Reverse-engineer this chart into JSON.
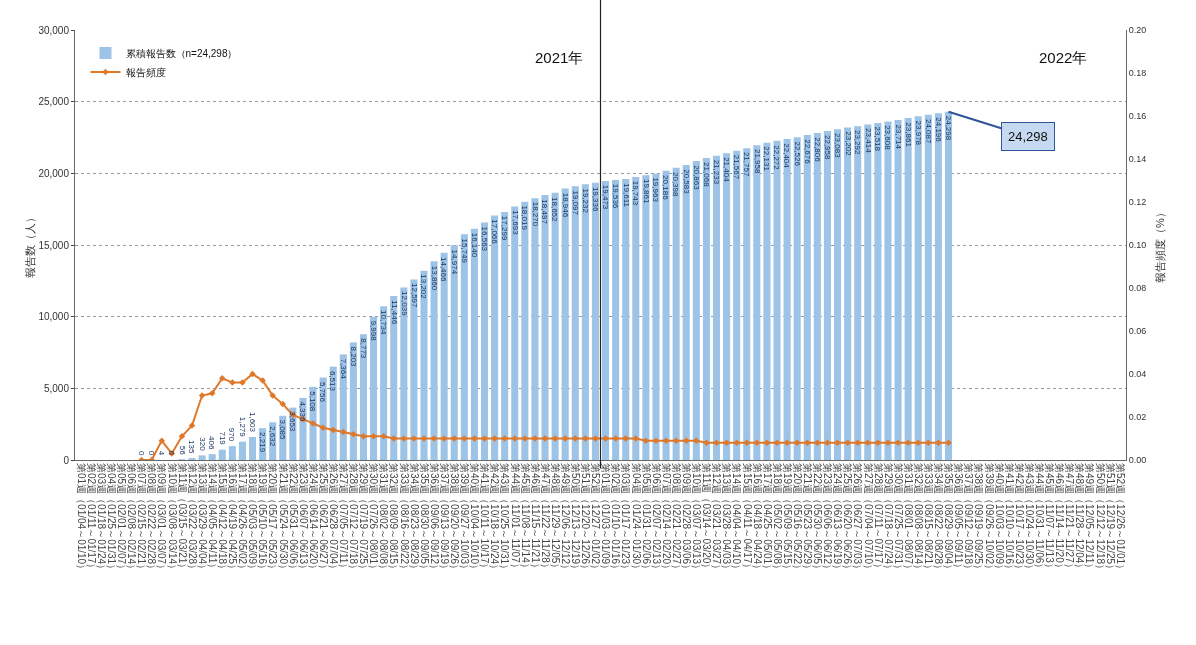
{
  "chart_data": {
    "type": "bar",
    "categories": [
      "第01週（01/04～01/10）",
      "第02週（01/11～01/17）",
      "第03週（01/18～01/24）",
      "第04週（01/25～01/31）",
      "第05週（02/01～02/07）",
      "第06週（02/08～02/14）",
      "第07週（02/15～02/21）",
      "第08週（02/22～02/28）",
      "第09週（03/01～03/07）",
      "第10週（03/08～03/14）",
      "第11週（03/15～03/21）",
      "第12週（03/22～03/28）",
      "第13週（03/29～04/04）",
      "第14週（04/05～04/11）",
      "第15週（04/12～04/18）",
      "第16週（04/19～04/25）",
      "第17週（04/26～05/02）",
      "第18週（05/03～05/09）",
      "第19週（05/10～05/16）",
      "第20週（05/17～05/23）",
      "第21週（05/24～05/30）",
      "第22週（05/31～06/06）",
      "第23週（06/07～06/13）",
      "第24週（06/14～06/20）",
      "第25週（06/21～06/27）",
      "第26週（06/28～07/04）",
      "第27週（07/05～07/11）",
      "第28週（07/12～07/18）",
      "第29週（07/19～07/25）",
      "第30週（07/26～08/01）",
      "第31週（08/02～08/08）",
      "第32週（08/09～08/15）",
      "第33週（08/16～08/22）",
      "第34週（08/23～08/29）",
      "第35週（08/30～09/05）",
      "第36週（09/06～09/12）",
      "第37週（09/13～09/19）",
      "第38週（09/20～09/26）",
      "第39週（09/27～10/03）",
      "第40週（10/04～10/10）",
      "第41週（10/11～10/17）",
      "第42週（10/18～10/24）",
      "第43週（10/25～10/31）",
      "第44週（11/01～11/07）",
      "第45週（11/08～11/14）",
      "第46週（11/15～11/21）",
      "第47週（11/22～11/28）",
      "第48週（11/29～12/05）",
      "第49週（12/06～12/12）",
      "第50週（12/13～12/19）",
      "第51週（12/20～12/26）",
      "第52週（12/27～01/02）",
      "第01週（01/03～01/09）",
      "第02週（01/10～01/16）",
      "第03週（01/17～01/23）",
      "第04週（01/24～01/30）",
      "第05週（01/31～02/06）",
      "第06週（02/07～02/13）",
      "第07週（02/14～02/20）",
      "第08週（02/21～02/27）",
      "第09週（02/28～03/06）",
      "第10週（03/07～03/13）",
      "第11週（03/14～03/20）",
      "第12週（03/21～03/27）",
      "第13週（03/28～04/03）",
      "第14週（04/04～04/10）",
      "第15週（04/11～04/17）",
      "第16週（04/18～04/24）",
      "第17週（04/25～05/01）",
      "第18週（05/02～05/08）",
      "第19週（05/09～05/15）",
      "第20週（05/16～05/22）",
      "第21週（05/23～05/29）",
      "第22週（05/30～06/05）",
      "第23週（06/06～06/12）",
      "第24週（06/13～06/19）",
      "第25週（06/20～06/26）",
      "第26週（06/27～07/03）",
      "第27週（07/04～07/10）",
      "第28週（07/11～07/17）",
      "第29週（07/18～07/24）",
      "第30週（07/25～07/31）",
      "第31週（08/01～08/07）",
      "第32週（08/08～08/14）",
      "第33週（08/15～08/21）",
      "第34週（08/22～08/28）",
      "第35週（08/29～09/04）",
      "第36週（09/05～09/11）",
      "第37週（09/12～09/18）",
      "第38週（09/19～09/25）",
      "第39週（09/26～10/02）",
      "第40週（10/03～10/09）",
      "第41週（10/10～10/16）",
      "第42週（10/17～10/23）",
      "第43週（10/24～10/30）",
      "第44週（10/31～11/06）",
      "第45週（11/07～11/13）",
      "第46週（11/14～11/20）",
      "第47週（11/21～11/27）",
      "第48週（11/28～12/04）",
      "第49週（12/05～12/11）",
      "第50週（12/12～12/18）",
      "第51週（12/19～12/25）",
      "第52週（12/26～01/01）"
    ],
    "series": [
      {
        "name": "累積報告数（n=24,298）",
        "color": "#9dc3e6",
        "values": [
          null,
          null,
          null,
          null,
          null,
          null,
          0,
          0,
          4,
          6,
          56,
          135,
          320,
          406,
          719,
          970,
          1279,
          1603,
          2219,
          2632,
          3085,
          3653,
          4336,
          5108,
          5756,
          6513,
          7364,
          8203,
          8773,
          9998,
          10734,
          11446,
          12039,
          12597,
          13202,
          13860,
          14466,
          14974,
          15749,
          16140,
          16563,
          17066,
          17299,
          17693,
          18019,
          18270,
          18497,
          18652,
          18946,
          19097,
          19232,
          19336,
          19473,
          19536,
          19611,
          19743,
          19861,
          19963,
          20186,
          20398,
          20583,
          20863,
          21068,
          21233,
          21404,
          21567,
          21757,
          21958,
          22131,
          22272,
          22404,
          22526,
          22676,
          22806,
          22958,
          23083,
          23202,
          23292,
          23414,
          23518,
          23608,
          23714,
          23861,
          23978,
          24087,
          24196,
          24298,
          null,
          null,
          null,
          null,
          null,
          null,
          null,
          null,
          null,
          null,
          null,
          null,
          null,
          null,
          null,
          null,
          null
        ],
        "value_labels": [
          null,
          null,
          null,
          null,
          null,
          null,
          "0",
          "0",
          "4",
          "6",
          "56",
          "135",
          "320",
          "406",
          "719",
          "970",
          "1,279",
          "1,603",
          "2,219",
          "2,632",
          "3,085",
          "3,653",
          "4,336",
          "5,108",
          "5,756",
          "6,513",
          "7,364",
          "8,203",
          "8,773",
          "9,998",
          "10,734",
          "11,446",
          "12,039",
          "12,597",
          "13,202",
          "13,860",
          "14,466",
          "14,974",
          "15,749",
          "16,140",
          "16,563",
          "17,066",
          "17,299",
          "17,693",
          "18,019",
          "18,270",
          "18,497",
          "18,652",
          "18,946",
          "19,097",
          "19,232",
          "19,336",
          "19,473",
          "19,536",
          "19,611",
          "19,743",
          "19,861",
          "19,963",
          "20,186",
          "20,398",
          "20,583",
          "20,863",
          "21,068",
          "21,233",
          "21,404",
          "21,567",
          "21,757",
          "21,958",
          "22,131",
          "22,272",
          "22,404",
          "22,526",
          "22,676",
          "22,806",
          "22,958",
          "23,083",
          "23,202",
          "23,292",
          "23,414",
          "23,518",
          "23,608",
          "23,714",
          "23,861",
          "23,978",
          "24,087",
          "24,196",
          "24,298",
          null,
          null,
          null,
          null,
          null,
          null,
          null,
          null,
          null,
          null,
          null,
          null,
          null,
          null,
          null,
          null,
          null
        ]
      },
      {
        "name": "報告頻度",
        "type": "line",
        "axis": "y2",
        "color": "#e0782a",
        "marker": "diamond",
        "line_style": "solid",
        "values": [
          null,
          null,
          null,
          null,
          null,
          null,
          0.0,
          0.0,
          0.009,
          0.003,
          0.011,
          0.016,
          0.03,
          0.031,
          0.038,
          0.036,
          0.036,
          0.04,
          0.037,
          0.03,
          0.026,
          0.021,
          0.019,
          0.017,
          0.015,
          0.014,
          0.013,
          0.012,
          0.011,
          0.011,
          0.011,
          0.01,
          0.01,
          0.01,
          0.01,
          0.01,
          0.01,
          0.01,
          0.01,
          0.01,
          0.01,
          0.01,
          0.01,
          0.01,
          0.01,
          0.01,
          0.01,
          0.01,
          0.01,
          0.01,
          0.01,
          0.01,
          0.01,
          0.01,
          0.01,
          0.01,
          0.009,
          0.009,
          0.009,
          0.009,
          0.009,
          0.009,
          0.008,
          0.008,
          0.008,
          0.008,
          0.008,
          0.008,
          0.008,
          0.008,
          0.008,
          0.008,
          0.008,
          0.008,
          0.008,
          0.008,
          0.008,
          0.008,
          0.008,
          0.008,
          0.008,
          0.008,
          0.008,
          0.008,
          0.008,
          0.008,
          0.008,
          null,
          null,
          null,
          null,
          null,
          null,
          null,
          null,
          null,
          null,
          null,
          null,
          null,
          null,
          null,
          null,
          null
        ]
      }
    ],
    "ylabel": "報告数（人）",
    "y2label": "報告頻度（%）",
    "ylim": [
      0,
      30000
    ],
    "yticks": [
      {
        "value": 0,
        "label": "0"
      },
      {
        "value": 5000,
        "label": "5,000"
      },
      {
        "value": 10000,
        "label": "10,000"
      },
      {
        "value": 15000,
        "label": "15,000"
      },
      {
        "value": 20000,
        "label": "20,000"
      },
      {
        "value": 25000,
        "label": "25,000"
      },
      {
        "value": 30000,
        "label": "30,000"
      }
    ],
    "y2lim": [
      0,
      0.2
    ],
    "y2ticks": [
      {
        "value": 0,
        "label": "0.00"
      },
      {
        "value": 0.02,
        "label": "0.02"
      },
      {
        "value": 0.04,
        "label": "0.04"
      },
      {
        "value": 0.06,
        "label": "0.06"
      },
      {
        "value": 0.08,
        "label": "0.08"
      },
      {
        "value": 0.1,
        "label": "0.10"
      },
      {
        "value": 0.12,
        "label": "0.12"
      },
      {
        "value": 0.14,
        "label": "0.14"
      },
      {
        "value": 0.16,
        "label": "0.16"
      },
      {
        "value": 0.18,
        "label": "0.18"
      },
      {
        "value": 0.2,
        "label": "0.20"
      }
    ],
    "ref_lines": [
      {
        "axis": "x",
        "value": "第01週（01/03～01/09）",
        "color": "#222222"
      }
    ],
    "annotations": [
      "2021年",
      "2022年",
      {
        "text": "24,298",
        "x": "第35週（08/29～09/04）",
        "y": 24298
      }
    ],
    "grid": "y",
    "legend": "top left"
  }
}
